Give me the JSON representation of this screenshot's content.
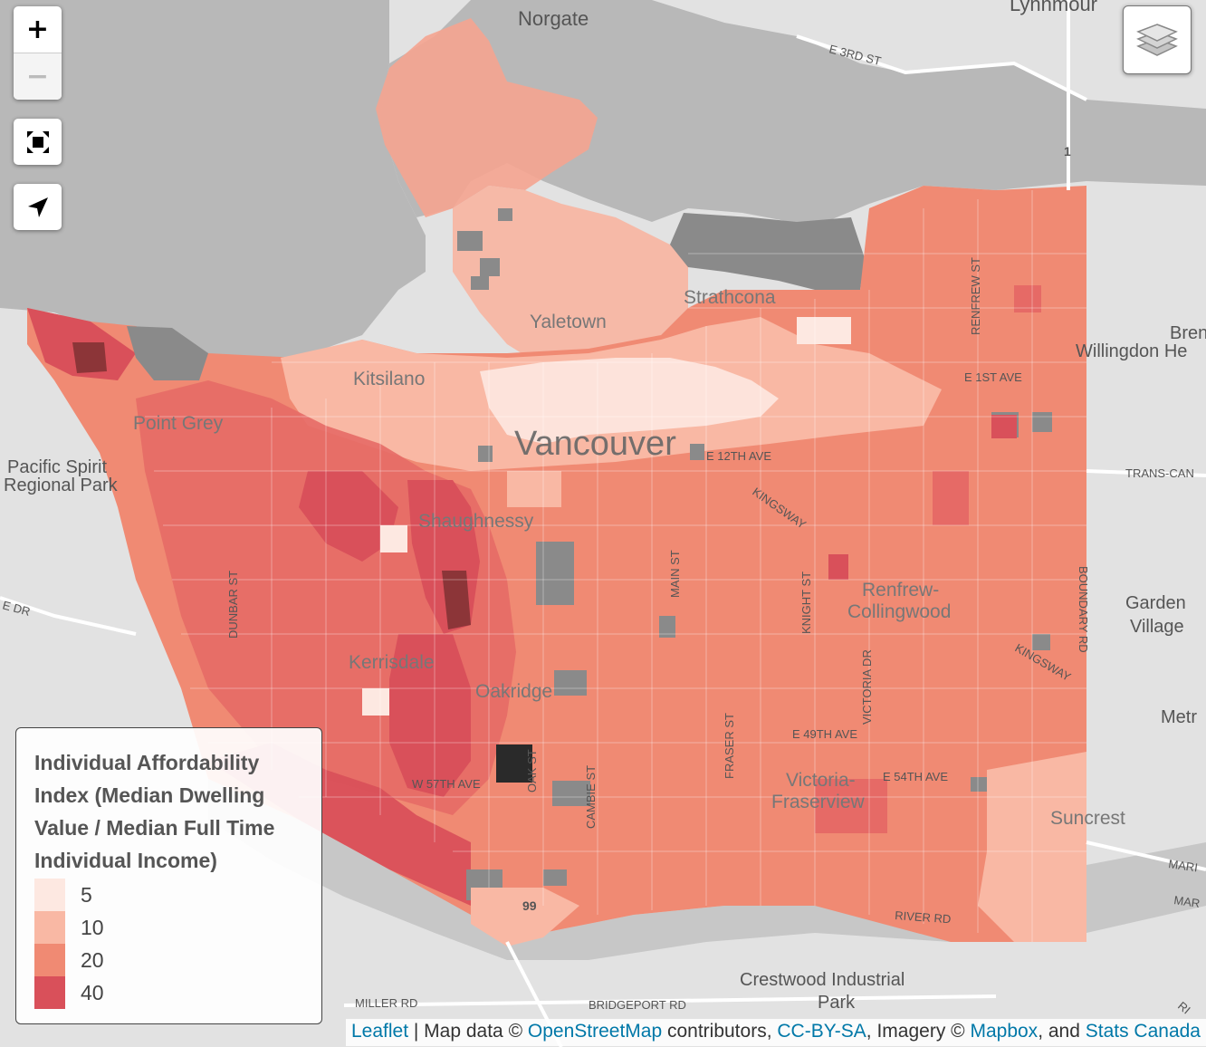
{
  "map": {
    "place_labels": [
      {
        "id": "norgate",
        "text": "Norgate"
      },
      {
        "id": "lynnmour",
        "text": "Lynnmour"
      },
      {
        "id": "e3rd",
        "text": "E 3RD ST"
      },
      {
        "id": "hwy1",
        "text": "1"
      },
      {
        "id": "strathcona",
        "text": "Strathcona"
      },
      {
        "id": "yaletown",
        "text": "Yaletown"
      },
      {
        "id": "kitsilano",
        "text": "Kitsilano"
      },
      {
        "id": "pointgrey",
        "text": "Point Grey"
      },
      {
        "id": "pacificspirit1",
        "text": "Pacific Spirit"
      },
      {
        "id": "pacificspirit2",
        "text": "Regional Park"
      },
      {
        "id": "vancouver",
        "text": "Vancouver"
      },
      {
        "id": "e12th",
        "text": "E 12TH AVE"
      },
      {
        "id": "kingsway",
        "text": "KINGSWAY"
      },
      {
        "id": "kingsway2",
        "text": "KINGSWAY"
      },
      {
        "id": "shaughnessy",
        "text": "Shaughnessy"
      },
      {
        "id": "renfrew",
        "text": "Renfrew-"
      },
      {
        "id": "collingwood",
        "text": "Collingwood"
      },
      {
        "id": "kerrisdale",
        "text": "Kerrisdale"
      },
      {
        "id": "oakridge",
        "text": "Oakridge"
      },
      {
        "id": "dunbar",
        "text": "DUNBAR ST"
      },
      {
        "id": "main",
        "text": "MAIN ST"
      },
      {
        "id": "knight",
        "text": "KNIGHT ST"
      },
      {
        "id": "victoria",
        "text": "VICTORIA DR"
      },
      {
        "id": "fraser",
        "text": "FRASER ST"
      },
      {
        "id": "cambie",
        "text": "CAMBIE ST"
      },
      {
        "id": "oak",
        "text": "OAK ST"
      },
      {
        "id": "boundary",
        "text": "BOUNDARY RD"
      },
      {
        "id": "renfrewst",
        "text": "RENFREW ST"
      },
      {
        "id": "e1st",
        "text": "E 1ST AVE"
      },
      {
        "id": "e49th",
        "text": "E 49TH AVE"
      },
      {
        "id": "e54th",
        "text": "E 54TH AVE"
      },
      {
        "id": "w57th",
        "text": "W 57TH AVE"
      },
      {
        "id": "victoriaf1",
        "text": "Victoria-"
      },
      {
        "id": "victoriaf2",
        "text": "Fraserview"
      },
      {
        "id": "suncrest",
        "text": "Suncrest"
      },
      {
        "id": "brentwood1",
        "text": "Bren"
      },
      {
        "id": "willingdon",
        "text": "Willingdon He"
      },
      {
        "id": "transcan",
        "text": "TRANS-CAN"
      },
      {
        "id": "garden1",
        "text": "Garden"
      },
      {
        "id": "garden2",
        "text": "Village"
      },
      {
        "id": "metro",
        "text": "Metr"
      },
      {
        "id": "marine1",
        "text": "MARI"
      },
      {
        "id": "marine2",
        "text": "MAR"
      },
      {
        "id": "riverrd",
        "text": "RIVER RD"
      },
      {
        "id": "crestwood1",
        "text": "Crestwood Industrial"
      },
      {
        "id": "crestwood2",
        "text": "Park"
      },
      {
        "id": "millerrd",
        "text": "MILLER RD"
      },
      {
        "id": "bridgeport",
        "text": "BRIDGEPORT RD"
      },
      {
        "id": "hwy99",
        "text": "99"
      },
      {
        "id": "edr",
        "text": "E DR"
      },
      {
        "id": "ri",
        "text": "RI"
      }
    ],
    "colors": {
      "water": "#b8b8b8",
      "land": "#e2e2e2",
      "class_5": "#fde8e1",
      "class_10": "#f9b8a4",
      "class_20": "#f08a73",
      "class_40": "#d9505a",
      "class_high": "#8c3538",
      "no_data": "#8a8a8a",
      "max": "#2a2a2a"
    }
  },
  "controls": {
    "zoom_in": "+",
    "zoom_out": "−"
  },
  "legend": {
    "title": "Individual Affordability Index (Median Dwelling Value / Median Full Time Individual Income)",
    "items": [
      {
        "label": "5",
        "color": "#fde8e1"
      },
      {
        "label": "10",
        "color": "#f9b8a4"
      },
      {
        "label": "20",
        "color": "#f08a73"
      },
      {
        "label": "40",
        "color": "#d9505a"
      }
    ]
  },
  "attribution": {
    "leaflet": "Leaflet",
    "sep1": " | Map data © ",
    "osm": "OpenStreetMap",
    "sep2": " contributors, ",
    "ccbysa": "CC-BY-SA",
    "sep3": ", Imagery © ",
    "mapbox": "Mapbox",
    "sep4": ", and ",
    "statscan": "Stats Canada"
  }
}
